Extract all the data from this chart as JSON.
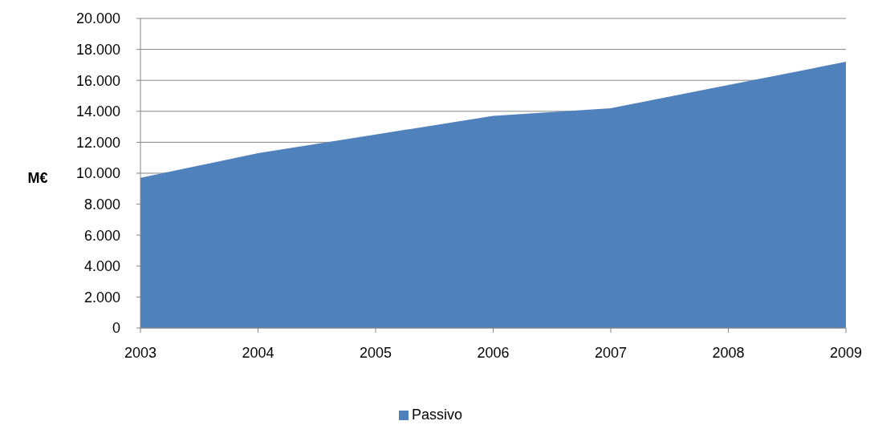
{
  "chart_data": {
    "type": "area",
    "ylabel": "M€",
    "categories": [
      "2003",
      "2004",
      "2005",
      "2006",
      "2007",
      "2008",
      "2009"
    ],
    "series": [
      {
        "name": "Passivo",
        "color": "#4f81bd",
        "values": [
          9700,
          11300,
          12500,
          13700,
          14200,
          15700,
          17200
        ]
      }
    ],
    "ylim": [
      0,
      20000
    ],
    "yticks": [
      0,
      {
        "value": 2000,
        "label": "2.000"
      },
      {
        "value": 4000,
        "label": "4.000"
      },
      {
        "value": 6000,
        "label": "6.000"
      },
      {
        "value": 8000,
        "label": "8.000"
      },
      {
        "value": 10000,
        "label": "10.000"
      },
      {
        "value": 12000,
        "label": "12.000"
      },
      {
        "value": 14000,
        "label": "14.000"
      },
      {
        "value": 16000,
        "label": "16.000"
      },
      {
        "value": 18000,
        "label": "18.000"
      },
      {
        "value": 20000,
        "label": "20.000"
      }
    ],
    "grid": "y",
    "legend": "bottom"
  }
}
